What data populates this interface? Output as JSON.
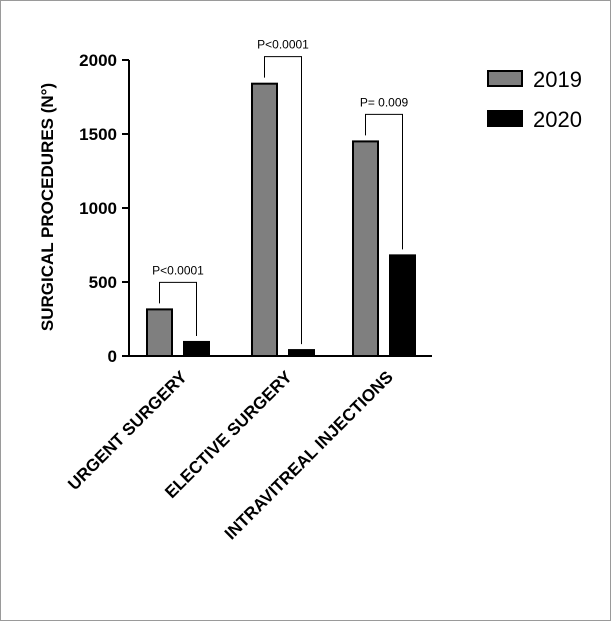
{
  "chart_data": {
    "type": "bar",
    "title": "",
    "ylabel": "SURGICAL PROCEDURES (N°)",
    "xlabel": "",
    "ylim": [
      0,
      2000
    ],
    "yticks": [
      0,
      500,
      1000,
      1500,
      2000
    ],
    "categories": [
      "URGENT SURGERY",
      "ELECTIVE SURGERY",
      "INTRAVITREAL INJECTIONS"
    ],
    "series": [
      {
        "name": "2019",
        "color": "#7f7f7f",
        "values": [
          315,
          1840,
          1450
        ]
      },
      {
        "name": "2020",
        "color": "#000000",
        "values": [
          95,
          40,
          680
        ]
      }
    ],
    "annotations": [
      "P<0.0001",
      "P<0.0001",
      "P= 0.009"
    ],
    "legend_position": "top-right",
    "grid": false
  }
}
